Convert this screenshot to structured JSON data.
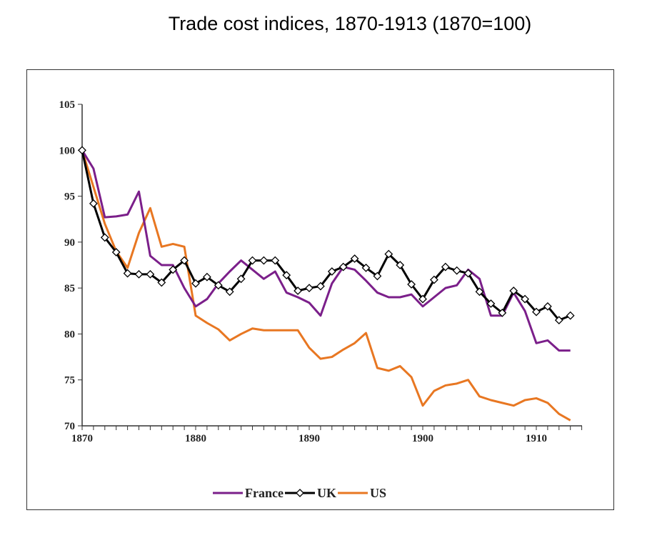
{
  "chart_data": {
    "type": "line",
    "title": "Trade cost indices, 1870-1913 (1870=100)",
    "xlabel": "",
    "ylabel": "",
    "xlim": [
      1870,
      1913
    ],
    "ylim": [
      70,
      105
    ],
    "yticks": [
      "70",
      "75",
      "80",
      "85",
      "90",
      "95",
      "100",
      "105"
    ],
    "xticks": [
      "1870",
      "1880",
      "1890",
      "1900",
      "1910"
    ],
    "legend_position": "bottom",
    "x": [
      1870,
      1871,
      1872,
      1873,
      1874,
      1875,
      1876,
      1877,
      1878,
      1879,
      1880,
      1881,
      1882,
      1883,
      1884,
      1885,
      1886,
      1887,
      1888,
      1889,
      1890,
      1891,
      1892,
      1893,
      1894,
      1895,
      1896,
      1897,
      1898,
      1899,
      1900,
      1901,
      1902,
      1903,
      1904,
      1905,
      1906,
      1907,
      1908,
      1909,
      1910,
      1911,
      1912,
      1913
    ],
    "series": [
      {
        "name": "France",
        "color": "#7b1f8a",
        "marker": "none",
        "values": [
          100,
          98,
          92.7,
          92.8,
          93,
          95.5,
          88.5,
          87.5,
          87.5,
          85,
          83,
          83.8,
          85.5,
          86.8,
          88,
          87,
          86,
          86.8,
          84.5,
          84,
          83.4,
          82,
          85.5,
          87.3,
          87,
          85.8,
          84.5,
          84,
          84,
          84.3,
          83,
          84,
          85,
          85.3,
          87,
          86,
          82,
          82,
          84.5,
          82.5,
          79,
          79.3,
          78.2,
          78.2
        ]
      },
      {
        "name": "UK",
        "color": "#000000",
        "marker": "diamond",
        "values": [
          100,
          94.2,
          90.5,
          88.9,
          86.6,
          86.5,
          86.5,
          85.6,
          87,
          88,
          85.5,
          86.2,
          85.3,
          84.6,
          86,
          88,
          88,
          88,
          86.4,
          84.7,
          85,
          85.2,
          86.8,
          87.3,
          88.2,
          87.2,
          86.3,
          88.7,
          87.5,
          85.4,
          83.8,
          85.9,
          87.3,
          86.9,
          86.6,
          84.6,
          83.3,
          82.3,
          84.7,
          83.8,
          82.4,
          83,
          81.5,
          82
        ]
      },
      {
        "name": "US",
        "color": "#e87722",
        "marker": "none",
        "values": [
          100,
          96,
          92,
          89,
          87.2,
          91,
          93.7,
          89.5,
          89.8,
          89.5,
          82,
          81.2,
          80.5,
          79.3,
          80,
          80.6,
          80.4,
          80.4,
          80.4,
          80.4,
          78.5,
          77.3,
          77.5,
          78.3,
          79,
          80.1,
          76.3,
          76,
          76.5,
          75.3,
          72.2,
          73.8,
          74.4,
          74.6,
          75,
          73.2,
          72.8,
          72.5,
          72.2,
          72.8,
          73,
          72.5,
          71.3,
          70.6
        ]
      }
    ]
  }
}
